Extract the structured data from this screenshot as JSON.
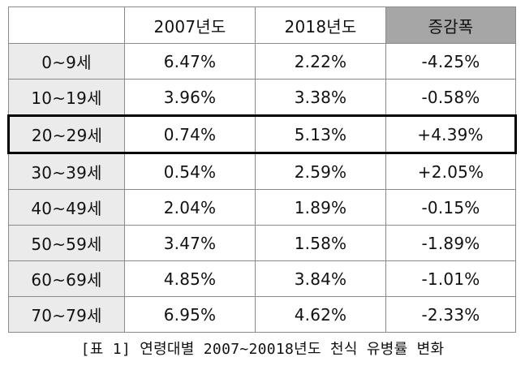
{
  "table": {
    "headers": [
      "",
      "2007년도",
      "2018년도",
      "증감폭"
    ],
    "rows": [
      {
        "age": "0~9세",
        "y2007": "6.47%",
        "y2018": "2.22%",
        "change": "-4.25%"
      },
      {
        "age": "10~19세",
        "y2007": "3.96%",
        "y2018": "3.38%",
        "change": "-0.58%"
      },
      {
        "age": "20~29세",
        "y2007": "0.74%",
        "y2018": "5.13%",
        "change": "+4.39%",
        "highlighted": true
      },
      {
        "age": "30~39세",
        "y2007": "0.54%",
        "y2018": "2.59%",
        "change": "+2.05%"
      },
      {
        "age": "40~49세",
        "y2007": "2.04%",
        "y2018": "1.89%",
        "change": "-0.15%"
      },
      {
        "age": "50~59세",
        "y2007": "3.47%",
        "y2018": "1.58%",
        "change": "-1.89%"
      },
      {
        "age": "60~69세",
        "y2007": "4.85%",
        "y2018": "3.84%",
        "change": "-1.01%"
      },
      {
        "age": "70~79세",
        "y2007": "6.95%",
        "y2018": "4.62%",
        "change": "-2.33%"
      }
    ]
  },
  "caption": "[표 1] 연령대별 2007~20018년도 천식 유병률 변화",
  "colors": {
    "age_cell_bg": "#ebebeb",
    "change_header_bg": "#a6a6a6",
    "grid_line": "#8a8a8a",
    "highlight_border": "#000000"
  }
}
